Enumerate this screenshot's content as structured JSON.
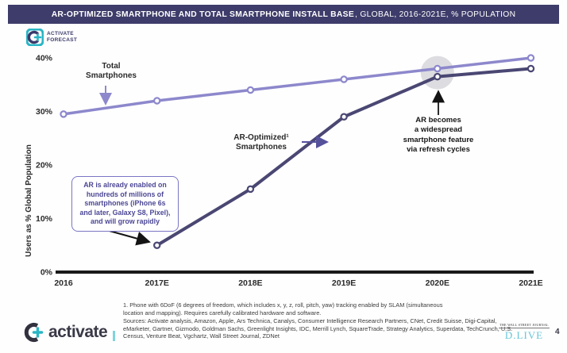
{
  "header": {
    "title_bold": "AR-OPTIMIZED SMARTPHONE AND TOTAL SMARTPHONE INSTALL BASE",
    "title_rest": ", GLOBAL, 2016-2021E, % POPULATION"
  },
  "forecast_badge": {
    "line1": "ACTIVATE",
    "line2": "FORECAST"
  },
  "chart_data": {
    "type": "line",
    "categories": [
      "2016",
      "2017E",
      "2018E",
      "2019E",
      "2020E",
      "2021E"
    ],
    "series": [
      {
        "name": "Total Smartphones",
        "color": "#8d88cc",
        "values": [
          29.5,
          32,
          34,
          36,
          38,
          40
        ]
      },
      {
        "name": "AR-Optimized Smartphones",
        "color": "#4a4773",
        "values": [
          null,
          5,
          15.5,
          29,
          36.5,
          38
        ]
      }
    ],
    "title": "AR-Optimized Smartphone and Total Smartphone Install Base, Global, 2016-2021E, % Population",
    "xlabel": "",
    "ylabel": "Users as % Global Population",
    "yticks": [
      0,
      10,
      20,
      30,
      40
    ],
    "ytick_suffix": "%",
    "ylim": [
      0,
      42
    ],
    "grid": false,
    "legend_position": "none",
    "highlight": {
      "category": "2020E",
      "style": "gray-circle"
    }
  },
  "annotations": {
    "total_label": "Total\nSmartphones",
    "ar_label": "AR-Optimized¹\nSmartphones",
    "callout": "AR is already enabled on\nhundreds of millions of\nsmartphones (iPhone 6s\nand later, Galaxy S8, Pixel),\nand will grow rapidly",
    "refresh_note": "AR becomes\na widespread\nsmartphone feature\nvia refresh cycles"
  },
  "footnotes": {
    "note1": "1. Phone with 6DoF (6 degrees of freedom, which includes x, y, z, roll, pitch, yaw) tracking enabled by SLAM (simultaneous\nlocation and mapping). Requires carefully calibrated hardware and software.",
    "sources": "Sources: Activate analysis, Amazon, Apple, Ars Technica, Canalys, Consumer Intelligence Research Partners, CNet, Credit Suisse, Digi-Capital, eMarketer, Gartner, Gizmodo, Goldman Sachs, Greenlight Insights, IDC, Merrill Lynch, SquareTrade, Strategy Analytics, Superdata, TechCrunch, U.S. Census, Venture Beat, Vgchartz, Wall Street Journal, ZDNet"
  },
  "footer": {
    "brand": "activate",
    "wsj_top": "THE WALL STREET JOURNAL",
    "wsj_event": "D.LIVE",
    "page_number": "4"
  },
  "colors": {
    "header_bg": "#3e3c6a",
    "total_line": "#8d88cc",
    "ar_line": "#4a4773",
    "teal_accent": "#2ab5c5",
    "highlight_gray": "#d5d4da",
    "dlive_blue": "#67c6da"
  }
}
